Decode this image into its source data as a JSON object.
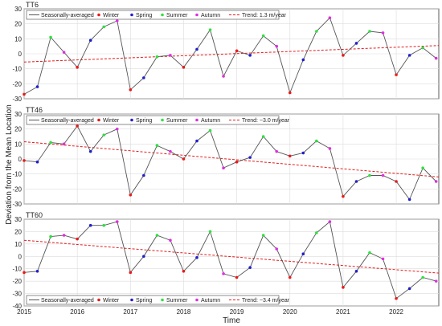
{
  "figure": {
    "ylabel": "Deviation from the Mean Location",
    "xlabel": "Time",
    "legend_labels": [
      "Seasonally-averaged",
      "Winter",
      "Spring",
      "Summer",
      "Autumn"
    ],
    "season_colors": {
      "Winter": "#e8191b",
      "Spring": "#1f1fcc",
      "Summer": "#2ee040",
      "Autumn": "#e02ee0"
    },
    "line_color": "#555555",
    "trend_color": "#e8191b"
  },
  "chart_data": [
    {
      "type": "line",
      "panel_title": "TT6",
      "trend_label": "Trend: 1.3 m/year",
      "xlim": [
        2015,
        2022.8
      ],
      "ylim": [
        -30,
        30
      ],
      "yticks": [
        -30,
        -20,
        -10,
        0,
        10,
        20,
        30
      ],
      "xticks": [
        "2015",
        "2016",
        "2017",
        "2018",
        "2019",
        "2020",
        "2021",
        "2022"
      ],
      "grid": true,
      "legend_position": "top",
      "trend": {
        "start": -5.5,
        "end": 5.5
      },
      "seasons": [
        "Winter",
        "Spring",
        "Summer",
        "Autumn",
        "Winter",
        "Spring",
        "Summer",
        "Autumn",
        "Winter",
        "Spring",
        "Summer",
        "Autumn",
        "Winter",
        "Spring",
        "Summer",
        "Autumn",
        "Winter",
        "Spring",
        "Summer",
        "Autumn",
        "Winter",
        "Spring",
        "Summer",
        "Autumn",
        "Winter",
        "Spring",
        "Summer",
        "Autumn",
        "Winter",
        "Spring",
        "Summer",
        "Autumn"
      ],
      "x": [
        2015.0,
        2015.25,
        2015.5,
        2015.75,
        2016.0,
        2016.25,
        2016.5,
        2016.75,
        2017.0,
        2017.25,
        2017.5,
        2017.75,
        2018.0,
        2018.25,
        2018.5,
        2018.75,
        2019.0,
        2019.25,
        2019.5,
        2019.75,
        2020.0,
        2020.25,
        2020.5,
        2020.75,
        2021.0,
        2021.25,
        2021.5,
        2021.75,
        2022.0,
        2022.25,
        2022.5,
        2022.75
      ],
      "values": [
        -27,
        -22,
        11,
        1,
        -9,
        9,
        18,
        22,
        -24,
        -16,
        -2,
        -1,
        -9,
        3,
        16,
        -15,
        2,
        -1,
        12,
        5,
        -26,
        -4,
        15,
        24,
        -1,
        7,
        15,
        14,
        -14,
        -1,
        4,
        -3
      ]
    },
    {
      "type": "line",
      "panel_title": "TT46",
      "trend_label": "Trend: −3.0 m/year",
      "xlim": [
        2015,
        2022.8
      ],
      "ylim": [
        -30,
        30
      ],
      "yticks": [
        -30,
        -20,
        -10,
        0,
        10,
        20,
        30
      ],
      "xticks": [
        "2015",
        "2016",
        "2017",
        "2018",
        "2019",
        "2020",
        "2021",
        "2022"
      ],
      "grid": true,
      "legend_position": "top",
      "trend": {
        "start": 11.5,
        "end": -12.0
      },
      "seasons": [
        "Winter",
        "Spring",
        "Summer",
        "Autumn",
        "Winter",
        "Spring",
        "Summer",
        "Autumn",
        "Winter",
        "Spring",
        "Summer",
        "Autumn",
        "Winter",
        "Spring",
        "Summer",
        "Autumn",
        "Winter",
        "Spring",
        "Summer",
        "Autumn",
        "Winter",
        "Spring",
        "Summer",
        "Autumn",
        "Winter",
        "Spring",
        "Summer",
        "Autumn",
        "Winter",
        "Spring",
        "Summer",
        "Autumn"
      ],
      "x": [
        2015.0,
        2015.25,
        2015.5,
        2015.75,
        2016.0,
        2016.25,
        2016.5,
        2016.75,
        2017.0,
        2017.25,
        2017.5,
        2017.75,
        2018.0,
        2018.25,
        2018.5,
        2018.75,
        2019.0,
        2019.25,
        2019.5,
        2019.75,
        2020.0,
        2020.25,
        2020.5,
        2020.75,
        2021.0,
        2021.25,
        2021.5,
        2021.75,
        2022.0,
        2022.25,
        2022.5,
        2022.75
      ],
      "values": [
        -1,
        -2,
        11,
        10,
        22,
        5,
        16,
        20,
        -24,
        -11,
        9,
        5,
        0,
        12,
        19,
        -6,
        -2,
        1,
        15,
        5,
        2,
        4,
        12,
        7,
        -25,
        -15,
        -11,
        -11,
        -15,
        -27,
        -6,
        -15
      ]
    },
    {
      "type": "line",
      "panel_title": "TT60",
      "trend_label": "Trend: −3.4 m/year",
      "xlim": [
        2015,
        2022.8
      ],
      "ylim": [
        -40,
        30
      ],
      "yticks": [
        -40,
        -30,
        -20,
        -10,
        0,
        10,
        20,
        30
      ],
      "xticks": [
        "2015",
        "2016",
        "2017",
        "2018",
        "2019",
        "2020",
        "2021",
        "2022"
      ],
      "grid": true,
      "legend_position": "bottom",
      "trend": {
        "start": 13.0,
        "end": -13.5
      },
      "seasons": [
        "Winter",
        "Spring",
        "Summer",
        "Autumn",
        "Winter",
        "Spring",
        "Summer",
        "Autumn",
        "Winter",
        "Spring",
        "Summer",
        "Autumn",
        "Winter",
        "Spring",
        "Summer",
        "Autumn",
        "Winter",
        "Spring",
        "Summer",
        "Autumn",
        "Winter",
        "Spring",
        "Summer",
        "Autumn",
        "Winter",
        "Spring",
        "Summer",
        "Autumn",
        "Winter",
        "Spring",
        "Summer",
        "Autumn"
      ],
      "x": [
        2015.0,
        2015.25,
        2015.5,
        2015.75,
        2016.0,
        2016.25,
        2016.5,
        2016.75,
        2017.0,
        2017.25,
        2017.5,
        2017.75,
        2018.0,
        2018.25,
        2018.5,
        2018.75,
        2019.0,
        2019.25,
        2019.5,
        2019.75,
        2020.0,
        2020.25,
        2020.5,
        2020.75,
        2021.0,
        2021.25,
        2021.5,
        2021.75,
        2022.0,
        2022.25,
        2022.5,
        2022.75
      ],
      "values": [
        -13,
        -12,
        16,
        17,
        14,
        25,
        25,
        28,
        -13,
        0,
        17,
        13,
        -12,
        -1,
        20,
        -14,
        -17,
        -9,
        17,
        6,
        -17,
        2,
        19,
        28,
        -25,
        -12,
        3,
        -2,
        -34,
        -26,
        -17,
        -20
      ]
    }
  ]
}
